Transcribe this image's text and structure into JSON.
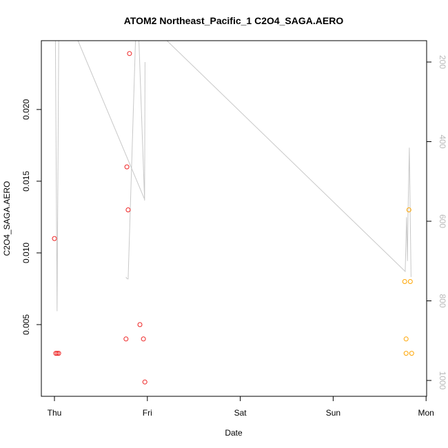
{
  "chart_data": {
    "type": "scatter",
    "title": "ATOM2 Northeast_Pacific_1 C2O4_SAGA.AERO",
    "xlabel": "Date",
    "ylabel": "C2O4_SAGA.AERO",
    "x_ticks": [
      "Thu",
      "Fri",
      "Sat",
      "Sun",
      "Mon"
    ],
    "x_range_days": [
      -0.1,
      4.0
    ],
    "ylim": [
      0.0,
      0.0248
    ],
    "y_ticks": [
      "0.005",
      "0.010",
      "0.015",
      "0.020"
    ],
    "y_tick_values": [
      0.005,
      0.01,
      0.015,
      0.02
    ],
    "y2_ticks": [
      "200",
      "400",
      "600",
      "800",
      "1000"
    ],
    "y2_tick_values": [
      200,
      400,
      600,
      800,
      1000
    ],
    "y2_range": [
      160,
      1050
    ],
    "y2_reversed": true,
    "series": [
      {
        "color": "#ee2222",
        "points": [
          {
            "x": 0.0,
            "y": 0.011
          },
          {
            "x": 0.015,
            "y": 0.003
          },
          {
            "x": 0.03,
            "y": 0.003
          },
          {
            "x": 0.045,
            "y": 0.003
          },
          {
            "x": 0.77,
            "y": 0.004
          },
          {
            "x": 0.78,
            "y": 0.016
          },
          {
            "x": 0.793,
            "y": 0.013
          },
          {
            "x": 0.808,
            "y": 0.0239
          },
          {
            "x": 0.92,
            "y": 0.005
          },
          {
            "x": 0.958,
            "y": 0.004
          },
          {
            "x": 0.973,
            "y": 0.001
          }
        ]
      },
      {
        "color": "#ffa500",
        "points": [
          {
            "x": 3.77,
            "y": 0.008
          },
          {
            "x": 3.785,
            "y": 0.004
          },
          {
            "x": 3.785,
            "y": 0.003
          },
          {
            "x": 3.815,
            "y": 0.013
          },
          {
            "x": 3.83,
            "y": 0.008
          },
          {
            "x": 3.845,
            "y": 0.003
          }
        ]
      }
    ],
    "altitude_line": {
      "color": "#c8c8c8",
      "axis": "y2",
      "points": [
        {
          "x": 0.0,
          "y": -200
        },
        {
          "x": 0.028,
          "y": 825
        },
        {
          "x": 0.045,
          "y": 200
        },
        {
          "x": 0.055,
          "y": 100
        },
        {
          "x": 0.17,
          "y": 100
        },
        {
          "x": 0.971,
          "y": 560
        },
        {
          "x": 0.971,
          "y": 560
        }
      ]
    }
  }
}
